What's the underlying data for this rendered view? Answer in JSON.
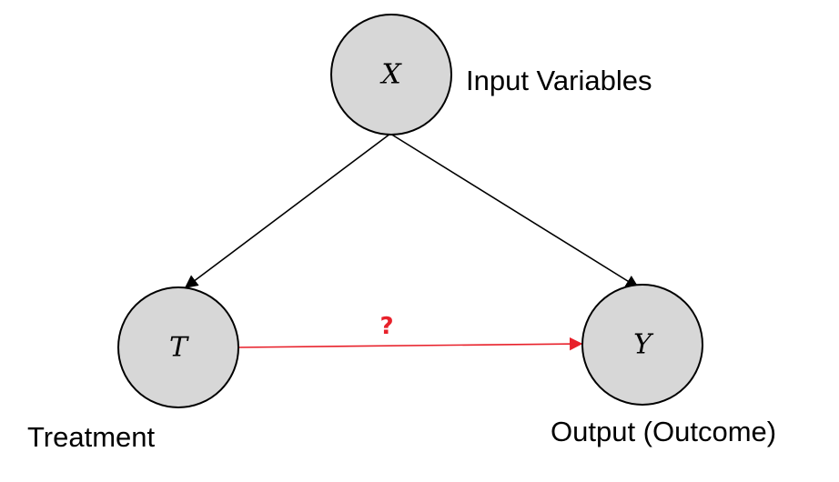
{
  "nodes": {
    "x": {
      "symbol": "X",
      "caption": "Input Variables"
    },
    "t": {
      "symbol": "T",
      "caption": "Treatment"
    },
    "y": {
      "symbol": "Y",
      "caption": "Output (Outcome)"
    }
  },
  "edges": {
    "t_to_y": {
      "label": "?"
    }
  },
  "colors": {
    "node_fill": "#d7d7d7",
    "node_stroke": "#000000",
    "causal_arrow": "#e8202a",
    "structural_arrow": "#000000"
  }
}
